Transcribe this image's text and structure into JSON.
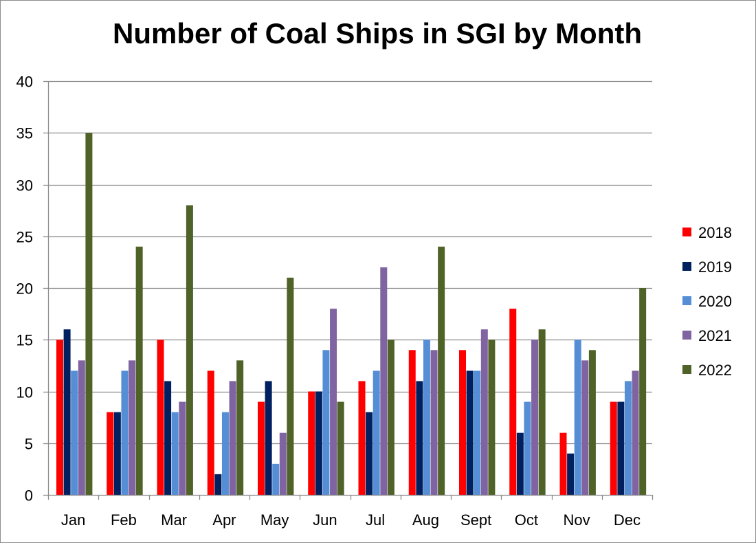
{
  "chart_data": {
    "type": "bar",
    "title": "Number of Coal Ships in SGI by Month",
    "xlabel": "",
    "ylabel": "",
    "ylim": [
      0,
      40
    ],
    "yticks": [
      0,
      5,
      10,
      15,
      20,
      25,
      30,
      35,
      40
    ],
    "grid": true,
    "legend_position": "right",
    "categories": [
      "Jan",
      "Feb",
      "Mar",
      "Apr",
      "May",
      "Jun",
      "Jul",
      "Aug",
      "Sept",
      "Oct",
      "Nov",
      "Dec"
    ],
    "series": [
      {
        "name": "2018",
        "color": "#ff0000",
        "values": [
          15,
          8,
          15,
          12,
          9,
          10,
          11,
          14,
          14,
          18,
          6,
          9
        ]
      },
      {
        "name": "2019",
        "color": "#002060",
        "values": [
          16,
          8,
          11,
          2,
          11,
          10,
          8,
          11,
          12,
          6,
          4,
          9
        ]
      },
      {
        "name": "2020",
        "color": "#558ed5",
        "values": [
          12,
          12,
          8,
          8,
          3,
          14,
          12,
          15,
          12,
          9,
          15,
          11
        ]
      },
      {
        "name": "2021",
        "color": "#8064a2",
        "values": [
          13,
          13,
          9,
          11,
          6,
          18,
          22,
          14,
          16,
          15,
          13,
          12
        ]
      },
      {
        "name": "2022",
        "color": "#4f6228",
        "values": [
          35,
          24,
          28,
          13,
          21,
          9,
          15,
          24,
          15,
          16,
          14,
          20
        ]
      }
    ]
  }
}
